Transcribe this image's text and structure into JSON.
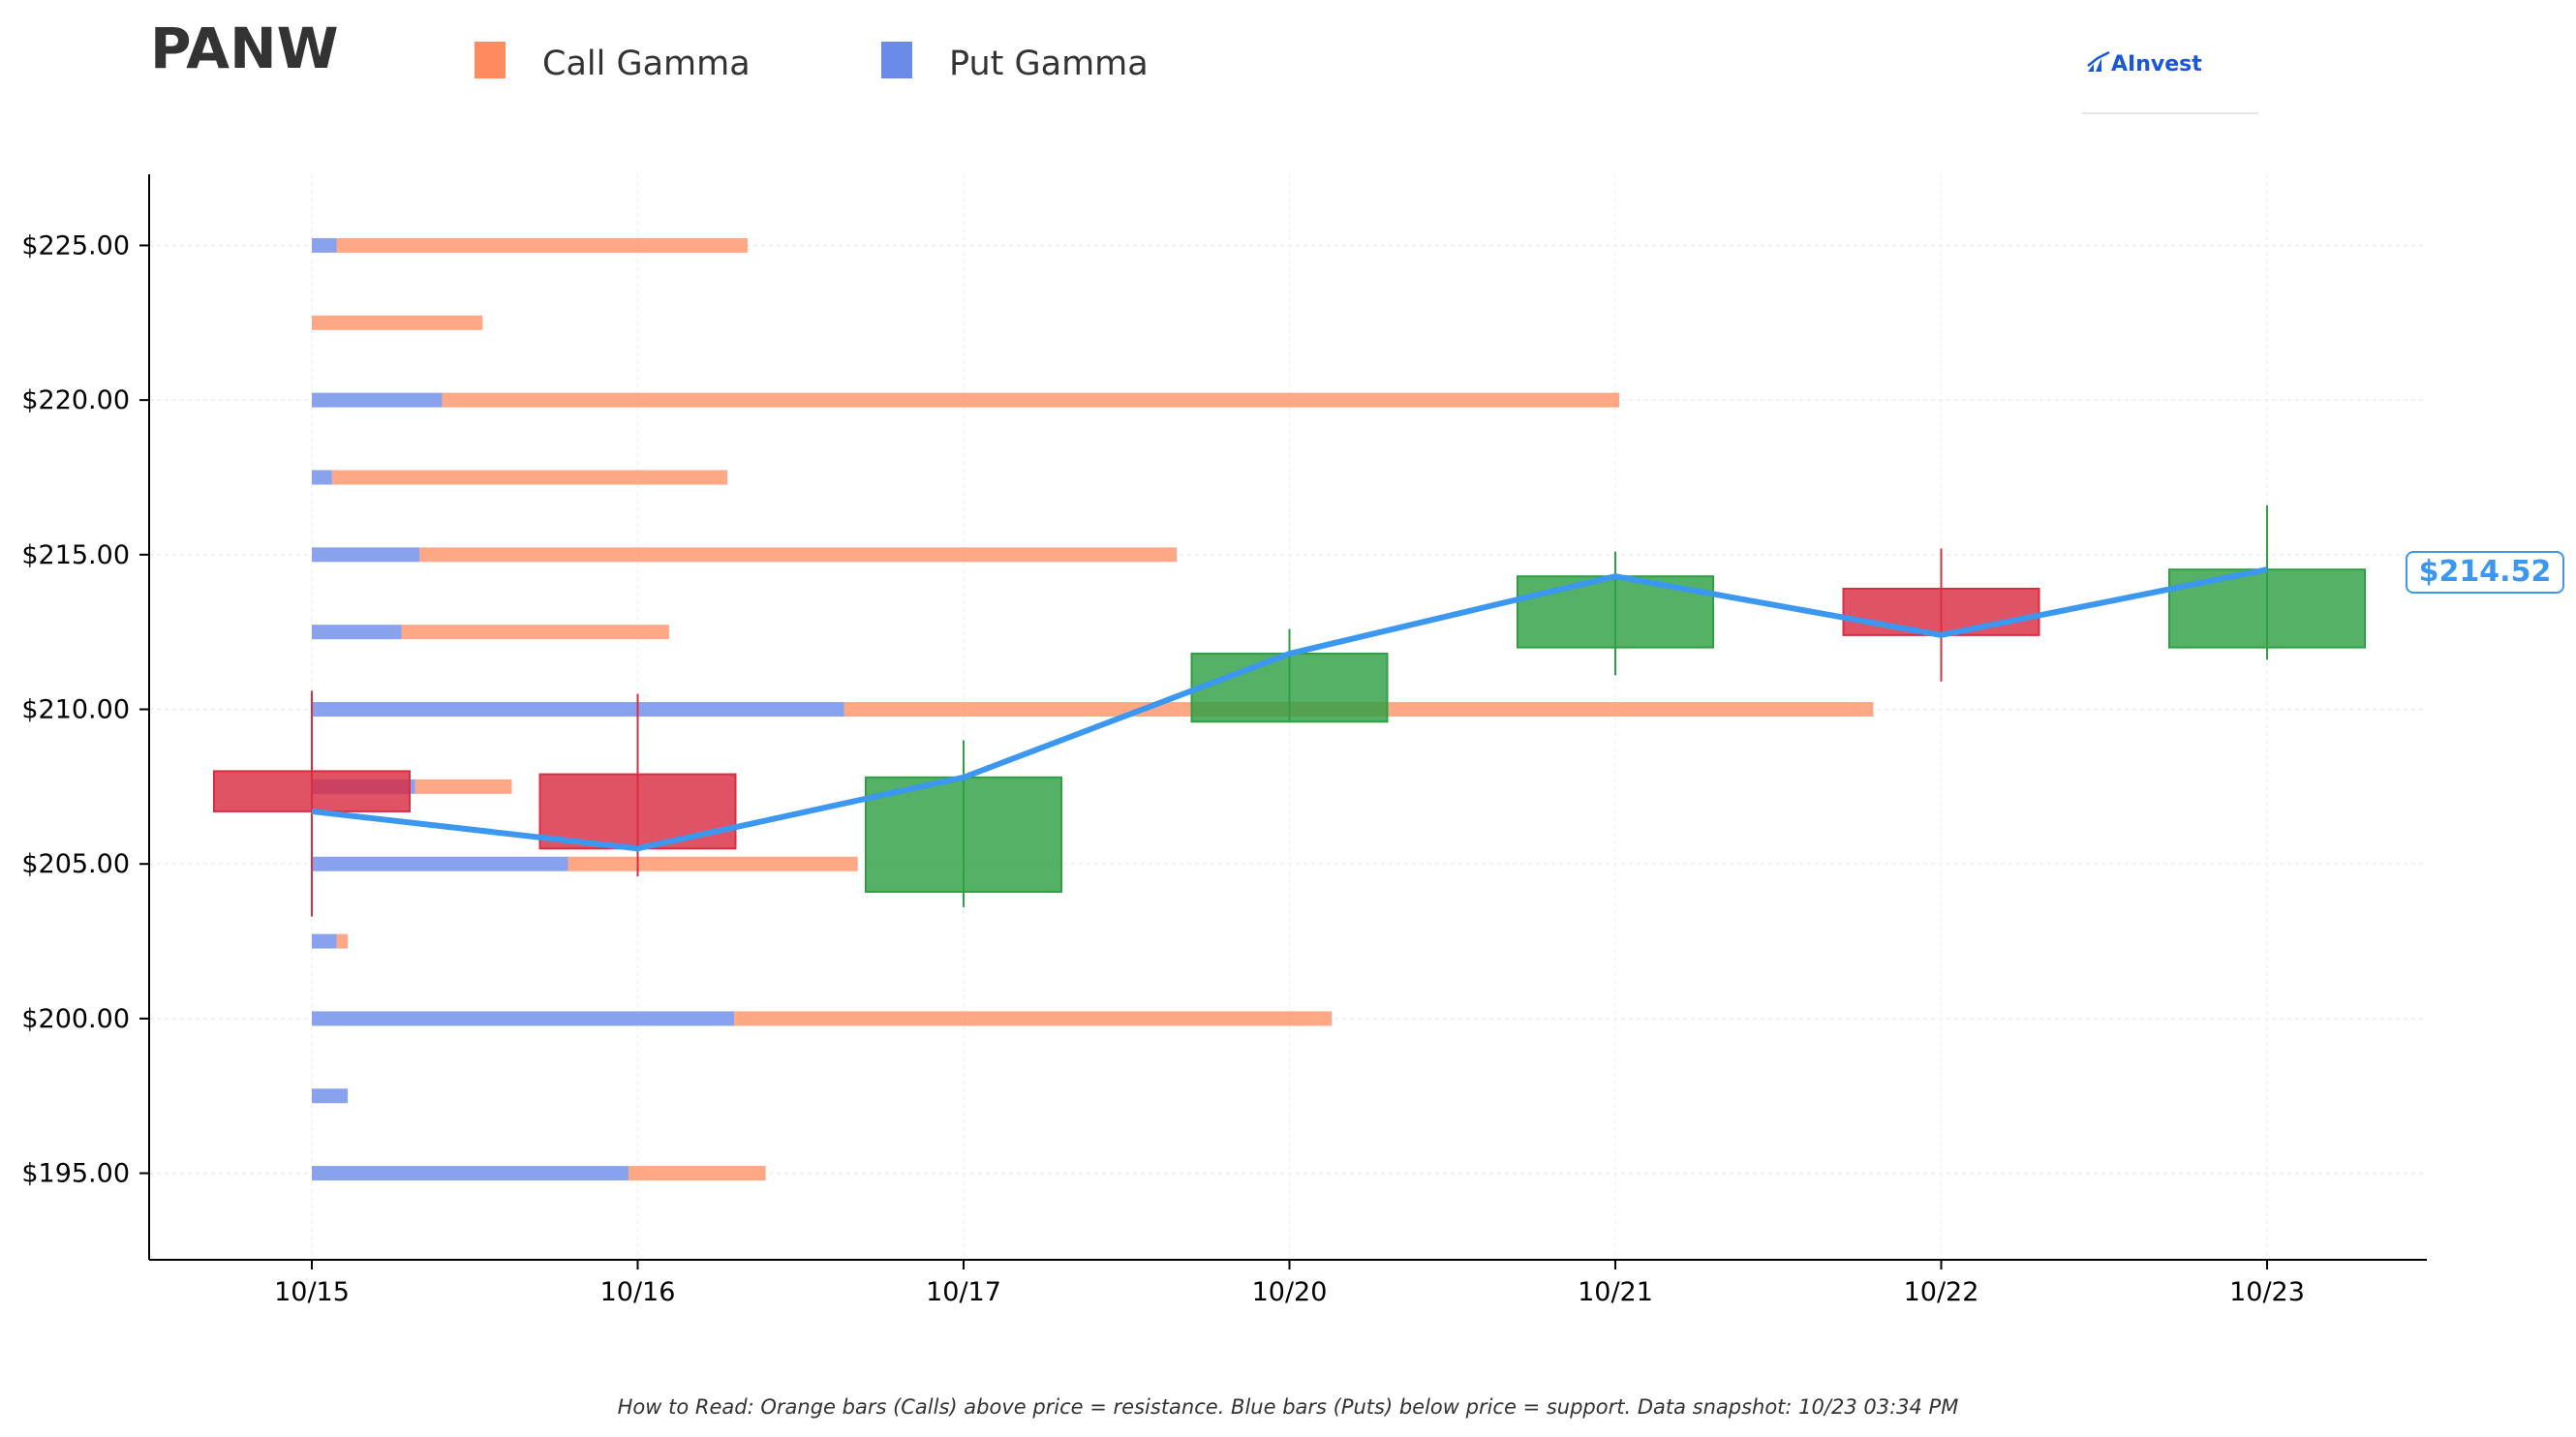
{
  "header": {
    "ticker": "PANW",
    "logo_text": "AInvest"
  },
  "legend": [
    {
      "label": "Call Gamma",
      "color": "#ff8b5e"
    },
    {
      "label": "Put Gamma",
      "color": "#6b8be8"
    }
  ],
  "footnote": "How to Read: Orange bars (Calls) above price = resistance. Blue bars (Puts) below price = support. Data snapshot: 10/23 03:34 PM",
  "current_price_label": "$214.52",
  "colors": {
    "call": "#ff8b5e",
    "put": "#6b8be8",
    "up": "#2ea043",
    "down": "#d92d42",
    "price_line": "#3b97f0"
  },
  "chart_data": {
    "type": "candlestick_with_gamma_bars",
    "title": "PANW",
    "x_categories": [
      "10/15",
      "10/16",
      "10/17",
      "10/20",
      "10/21",
      "10/22",
      "10/23"
    ],
    "y_tick_labels": [
      "$195.00",
      "$200.00",
      "$205.00",
      "$210.00",
      "$215.00",
      "$220.00",
      "$225.00"
    ],
    "y_ticks": [
      195,
      200,
      205,
      210,
      215,
      220,
      225
    ],
    "ylim": [
      192.2,
      227.3
    ],
    "grid": true,
    "candles": [
      {
        "date": "10/15",
        "open": 208.0,
        "high": 210.6,
        "low": 203.3,
        "close": 206.7
      },
      {
        "date": "10/16",
        "open": 207.9,
        "high": 210.5,
        "low": 204.6,
        "close": 205.5
      },
      {
        "date": "10/17",
        "open": 204.1,
        "high": 209.0,
        "low": 203.6,
        "close": 207.8
      },
      {
        "date": "10/20",
        "open": 209.6,
        "high": 212.6,
        "low": 209.6,
        "close": 211.8
      },
      {
        "date": "10/21",
        "open": 212.0,
        "high": 215.1,
        "low": 211.1,
        "close": 214.3
      },
      {
        "date": "10/22",
        "open": 213.9,
        "high": 215.2,
        "low": 210.9,
        "close": 212.4
      },
      {
        "date": "10/23",
        "open": 212.0,
        "high": 216.6,
        "low": 211.6,
        "close": 214.52
      }
    ],
    "gamma_strikes": [
      225,
      222.5,
      220,
      217.5,
      215,
      212.5,
      210,
      207.5,
      205,
      202.5,
      200,
      197.5,
      195
    ],
    "call_gamma": [
      0.183,
      0.076,
      0.524,
      0.176,
      0.337,
      0.119,
      0.458,
      0.043,
      0.129,
      0.005,
      0.266,
      0.0,
      0.061
    ],
    "put_gamma": [
      0.011,
      0.0,
      0.058,
      0.009,
      0.048,
      0.04,
      0.237,
      0.046,
      0.114,
      0.011,
      0.188,
      0.016,
      0.141
    ],
    "gamma_scale_max": 1.0,
    "current_price": 214.52
  }
}
